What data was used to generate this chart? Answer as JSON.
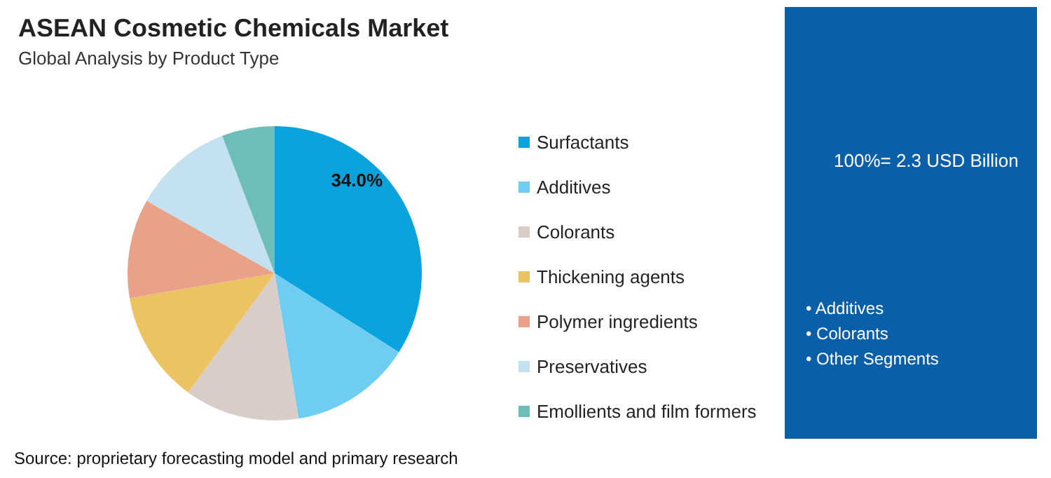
{
  "chart_data": {
    "type": "pie",
    "title": "ASEAN Cosmetic Chemicals Market",
    "subtitle": "Global Analysis by Product Type",
    "categories": [
      "Surfactants",
      "Additives",
      "Colorants",
      "Thickening agents",
      "Polymer ingredients",
      "Preservatives",
      "Emollients and film formers"
    ],
    "values": [
      34.0,
      13.4,
      12.6,
      12.3,
      10.9,
      11.0,
      5.8
    ],
    "colors": [
      "#0aa3de",
      "#6fcdf2",
      "#d8cdc9",
      "#ebc362",
      "#e9a287",
      "#c3e1f1",
      "#6dbdb8"
    ],
    "value_labels": [
      "34.0%",
      null,
      null,
      null,
      null,
      null,
      null
    ],
    "legend": "right",
    "annotations": [
      "100%= 2.3 USD Billion",
      "• Additives",
      "• Colorants",
      "• Other Segments",
      "Source: proprietary forecasting model and primary research"
    ]
  }
}
